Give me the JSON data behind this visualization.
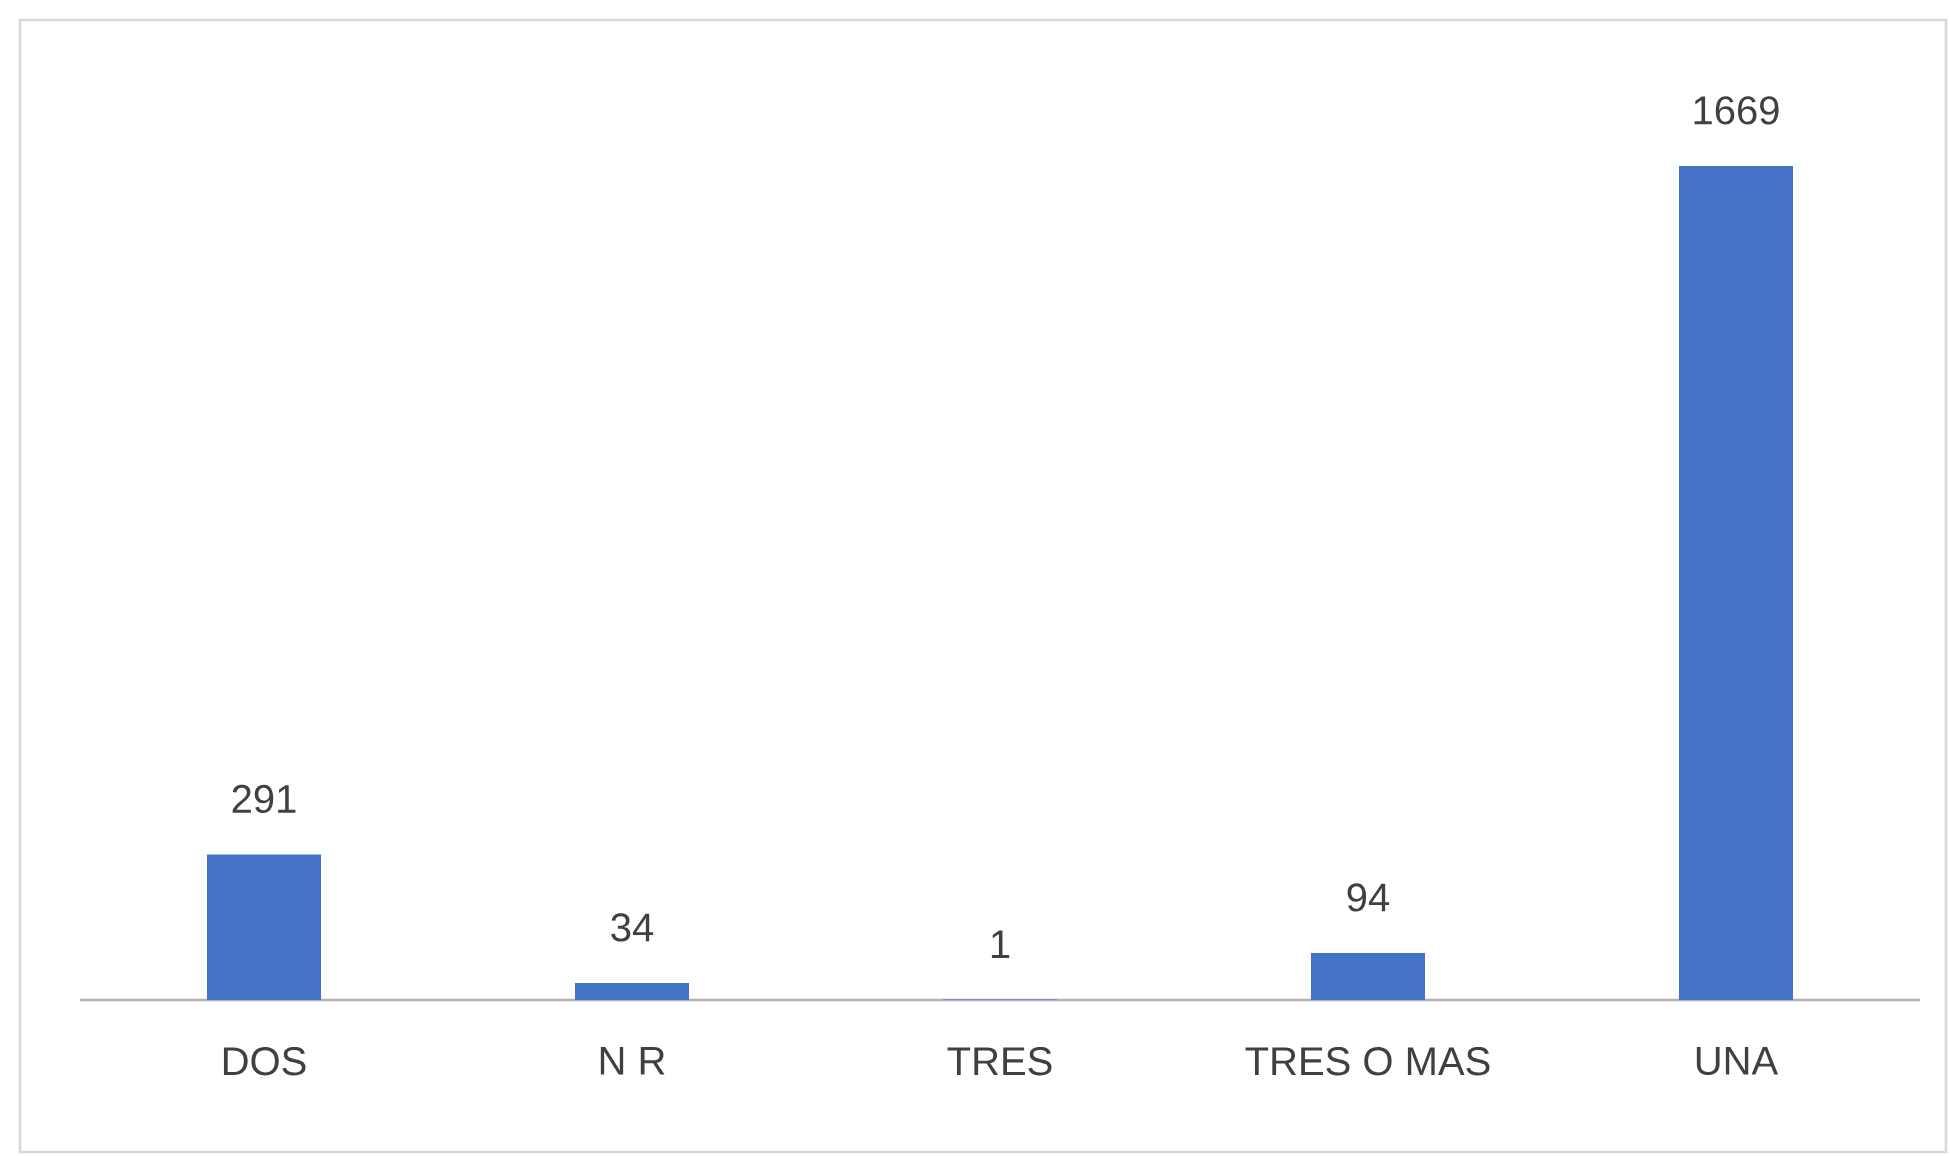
{
  "chart_data": {
    "type": "bar",
    "categories": [
      "DOS",
      "N R",
      "TRES",
      "TRES O MAS",
      "UNA"
    ],
    "values": [
      291,
      34,
      1,
      94,
      1669
    ],
    "color": "#4472c4",
    "data_labels": true
  }
}
